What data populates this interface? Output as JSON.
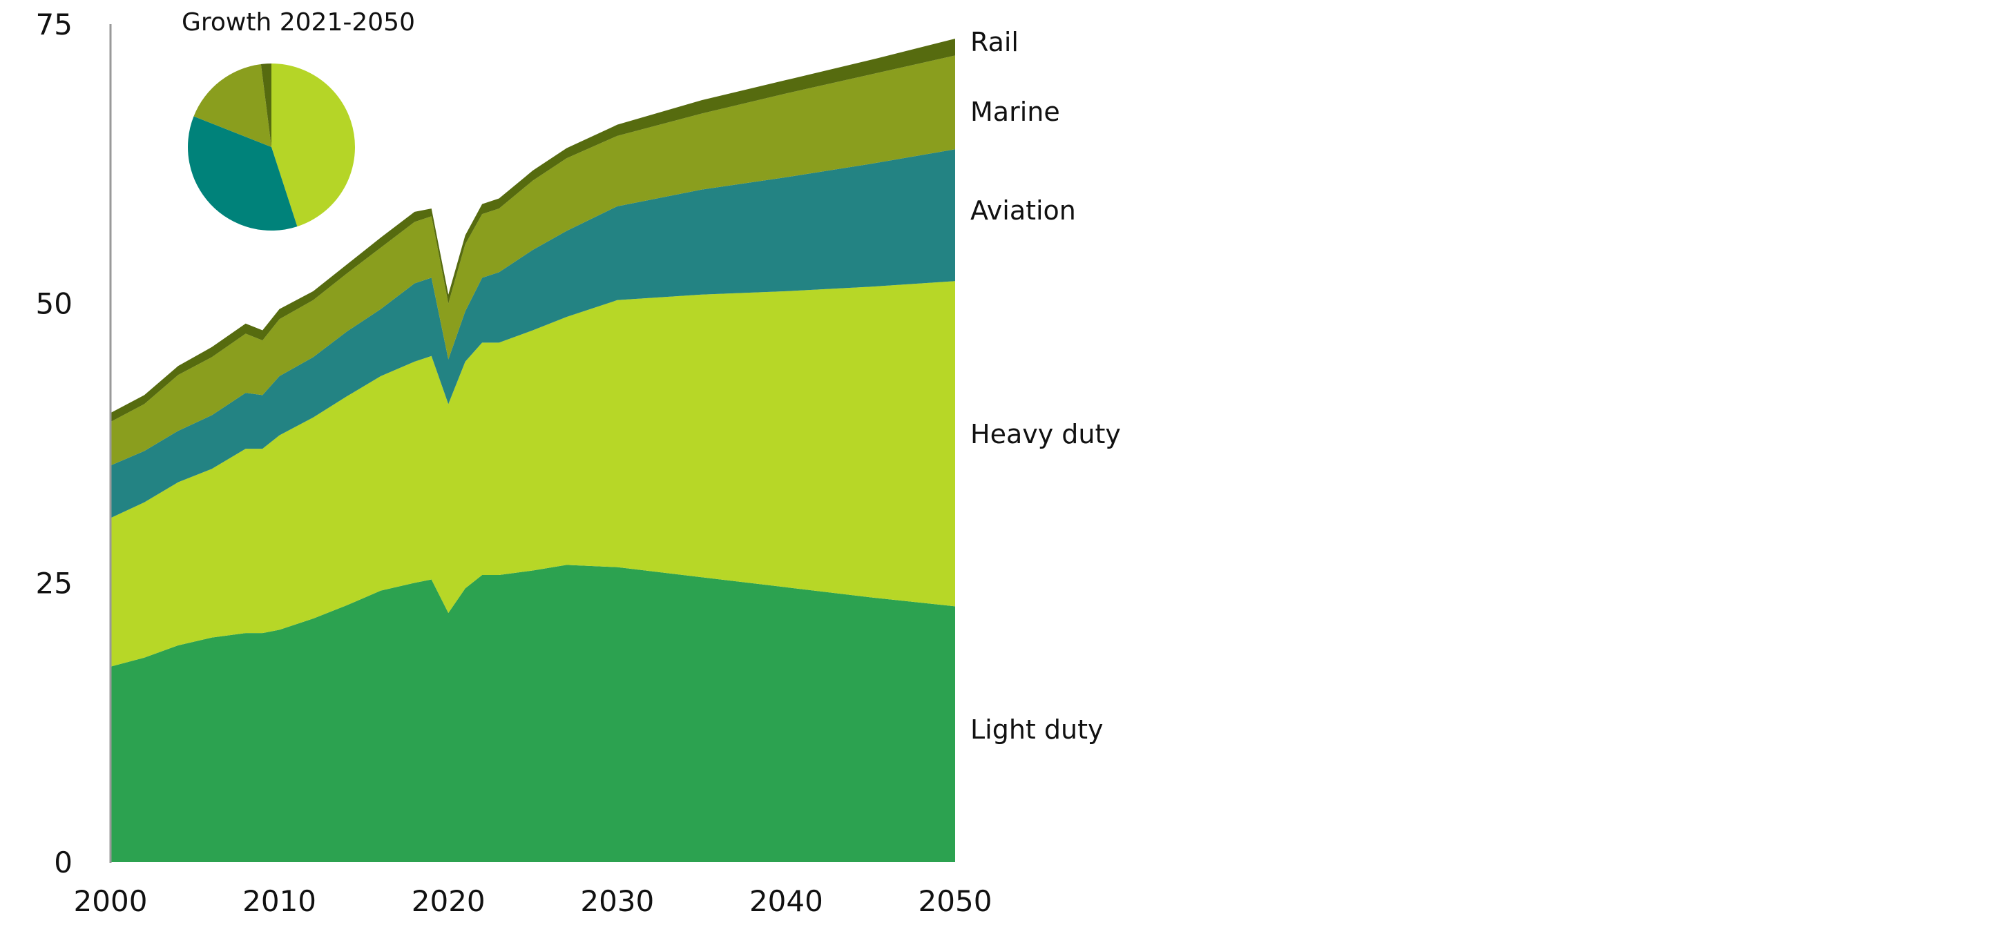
{
  "chart_data": {
    "type": "area",
    "stacked": true,
    "title": "",
    "xlabel": "",
    "ylabel": "",
    "xlim": [
      2000,
      2050
    ],
    "ylim": [
      0,
      75
    ],
    "xticks": [
      "2000",
      "2010",
      "2020",
      "2030",
      "2040",
      "2050"
    ],
    "yticks": [
      "0",
      "25",
      "50",
      "75"
    ],
    "grid": false,
    "x": [
      2000,
      2002,
      2004,
      2006,
      2008,
      2009,
      2010,
      2012,
      2014,
      2016,
      2018,
      2019,
      2020,
      2021,
      2022,
      2023,
      2025,
      2027,
      2030,
      2035,
      2040,
      2045,
      2050
    ],
    "series": [
      {
        "name": "Light duty",
        "color": "#2ca250",
        "values": [
          17.5,
          18.3,
          19.4,
          20.1,
          20.5,
          20.5,
          20.8,
          21.8,
          23.0,
          24.3,
          25.0,
          25.3,
          22.3,
          24.5,
          25.7,
          25.7,
          26.1,
          26.6,
          26.4,
          25.5,
          24.6,
          23.7,
          22.9
        ]
      },
      {
        "name": "Heavy duty",
        "color": "#b7d727",
        "values": [
          13.3,
          13.9,
          14.6,
          15.1,
          16.5,
          16.5,
          17.4,
          18.0,
          18.7,
          19.2,
          19.8,
          20.0,
          18.7,
          20.3,
          20.8,
          20.8,
          21.5,
          22.2,
          23.9,
          25.3,
          26.5,
          27.8,
          29.1
        ]
      },
      {
        "name": "Aviation",
        "color": "#238383",
        "values": [
          4.7,
          4.6,
          4.6,
          4.8,
          5.0,
          4.8,
          5.3,
          5.4,
          5.8,
          6.0,
          7.0,
          7.0,
          4.0,
          4.5,
          5.8,
          6.3,
          7.2,
          7.7,
          8.4,
          9.4,
          10.2,
          11.0,
          11.8
        ]
      },
      {
        "name": "Marine",
        "color": "#8a9e1e",
        "values": [
          3.9,
          4.2,
          5.0,
          5.2,
          5.3,
          4.9,
          5.1,
          5.1,
          5.2,
          5.5,
          5.5,
          5.5,
          5.0,
          6.0,
          5.7,
          5.7,
          6.2,
          6.5,
          6.3,
          6.8,
          7.5,
          8.0,
          8.4
        ]
      },
      {
        "name": "Rail",
        "color": "#566b0f",
        "values": [
          0.8,
          0.8,
          0.8,
          0.9,
          0.9,
          0.9,
          0.9,
          0.8,
          0.8,
          0.9,
          0.9,
          0.7,
          0.8,
          0.8,
          0.9,
          0.9,
          0.9,
          0.9,
          1.0,
          1.2,
          1.2,
          1.3,
          1.5
        ]
      }
    ],
    "inset_pie": {
      "title": "Growth 2021-2050",
      "slices": [
        {
          "name": "Heavy duty",
          "value": 45,
          "color": "#b5d527"
        },
        {
          "name": "Aviation",
          "value": 36,
          "color": "#00827a"
        },
        {
          "name": "Marine",
          "value": 17,
          "color": "#8a9e1e"
        },
        {
          "name": "Rail",
          "value": 2,
          "color": "#566b0f"
        }
      ]
    }
  }
}
